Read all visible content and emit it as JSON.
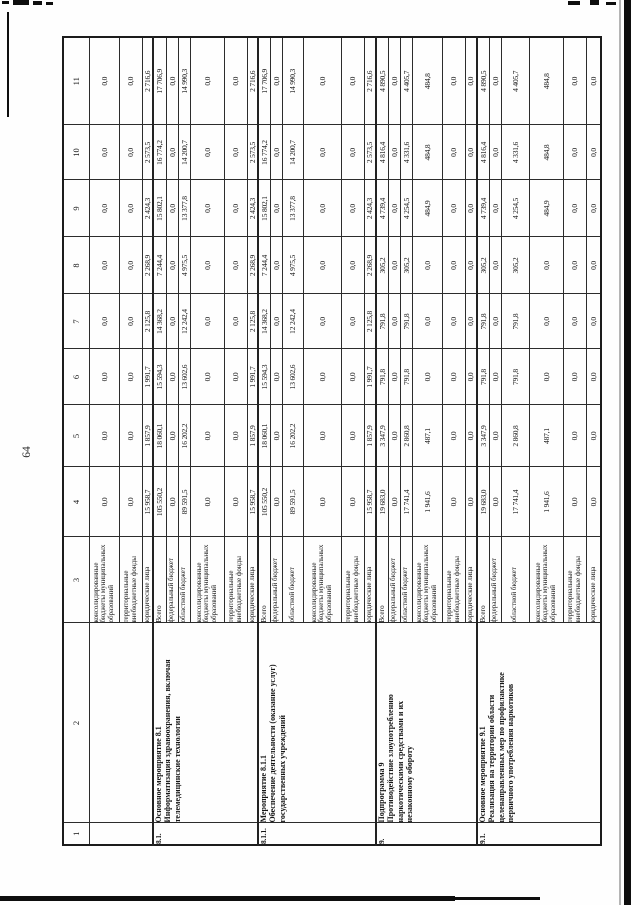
{
  "page": {
    "number": "64"
  },
  "table": {
    "column_headers": [
      "1",
      "2",
      "3",
      "4",
      "5",
      "6",
      "7",
      "8",
      "9",
      "10",
      "11"
    ],
    "groups": [
      {
        "num": "",
        "title": "",
        "rows": [
          {
            "source": "консолидированные\nбюджеты муниципальных\nобразований",
            "values": [
              "0,0",
              "0,0",
              "0,0",
              "0,0",
              "0,0",
              "0,0",
              "0,0",
              "0,0"
            ]
          },
          {
            "source": "территориальные\nвнебюджетные фонды",
            "values": [
              "0,0",
              "0,0",
              "0,0",
              "0,0",
              "0,0",
              "0,0",
              "0,0",
              "0,0"
            ]
          },
          {
            "source": "юридические лица",
            "values": [
              "15 958,7",
              "1 857,9",
              "1 991,7",
              "2 125,8",
              "2 268,9",
              "2 424,3",
              "2 573,5",
              "2 716,6"
            ]
          }
        ]
      },
      {
        "num": "8.1.",
        "title": "Основное мероприятие 8.1\nИнформатизация здравоохранения, включая\nтелемедицинские технологии",
        "rows": [
          {
            "source": "Всего",
            "values": [
              "105 550,2",
              "18 060,1",
              "15 594,3",
              "14 368,2",
              "7 244,4",
              "15 802,1",
              "16 774,2",
              "17 706,9"
            ]
          },
          {
            "source": "федеральный бюджет",
            "values": [
              "0,0",
              "0,0",
              "0,0",
              "0,0",
              "0,0",
              "0,0",
              "0,0",
              "0,0"
            ]
          },
          {
            "source": "областной бюджет",
            "values": [
              "89 591,5",
              "16 202,2",
              "13 602,6",
              "12 242,4",
              "4 975,5",
              "13 377,8",
              "14 200,7",
              "14 990,3"
            ]
          },
          {
            "source": "консолидированные\nбюджеты муниципальных\nобразований",
            "values": [
              "0,0",
              "0,0",
              "0,0",
              "0,0",
              "0,0",
              "0,0",
              "0,0",
              "0,0"
            ]
          },
          {
            "source": "территориальные\nвнебюджетные фонды",
            "values": [
              "0,0",
              "0,0",
              "0,0",
              "0,0",
              "0,0",
              "0,0",
              "0,0",
              "0,0"
            ]
          },
          {
            "source": "юридические лица",
            "values": [
              "15 958,7",
              "1 857,9",
              "1 991,7",
              "2 125,8",
              "2 268,9",
              "2 424,3",
              "2 573,5",
              "2 716,6"
            ]
          }
        ]
      },
      {
        "num": "8.1.1.",
        "title": "Мероприятие 8.1.1\nОбеспечение деятельности (оказание услуг)\nгосударственных учреждений",
        "rows": [
          {
            "source": "Всего",
            "values": [
              "105 550,2",
              "18 060,1",
              "15 594,3",
              "14 368,2",
              "7 244,4",
              "15 802,1",
              "16 774,2",
              "17 706,9"
            ]
          },
          {
            "source": "федеральный бюджет",
            "values": [
              "0,0",
              "0,0",
              "0,0",
              "0,0",
              "0,0",
              "0,0",
              "0,0",
              "0,0"
            ]
          },
          {
            "source": "областной бюджет",
            "values": [
              "89 591,5",
              "16 202,2",
              "13 602,6",
              "12 242,4",
              "4 975,5",
              "13 377,8",
              "14 200,7",
              "14 990,3"
            ]
          },
          {
            "source": "консолидированные\nбюджеты муниципальных\nобразований",
            "values": [
              "0,0",
              "0,0",
              "0,0",
              "0,0",
              "0,0",
              "0,0",
              "0,0",
              "0,0"
            ]
          },
          {
            "source": "территориальные\nвнебюджетные фонды",
            "values": [
              "0,0",
              "0,0",
              "0,0",
              "0,0",
              "0,0",
              "0,0",
              "0,0",
              "0,0"
            ]
          },
          {
            "source": "юридические лица",
            "values": [
              "15 958,7",
              "1 857,9",
              "1 991,7",
              "2 125,8",
              "2 268,9",
              "2 424,3",
              "2 573,5",
              "2 716,6"
            ]
          }
        ]
      },
      {
        "num": "9.",
        "title": "Подпрограмма 9\nПротиводействие злоупотреблению\nнаркотическими средствами и их\nнезаконному обороту",
        "rows": [
          {
            "source": "Всего",
            "values": [
              "19 683,0",
              "3 347,9",
              "791,8",
              "791,8",
              "305,2",
              "4 739,4",
              "4 816,4",
              "4 890,5"
            ]
          },
          {
            "source": "федеральный бюджет",
            "values": [
              "0,0",
              "0,0",
              "0,0",
              "0,0",
              "0,0",
              "0,0",
              "0,0",
              "0,0"
            ]
          },
          {
            "source": "областной бюджет",
            "values": [
              "17 741,4",
              "2 860,8",
              "791,8",
              "791,8",
              "305,2",
              "4 254,5",
              "4 331,6",
              "4 405,7"
            ]
          },
          {
            "source": "консолидированные\nбюджеты муниципальных\nобразований",
            "values": [
              "1 941,6",
              "487,1",
              "0,0",
              "0,0",
              "0,0",
              "484,9",
              "484,8",
              "484,8"
            ]
          },
          {
            "source": "территориальные\nвнебюджетные фонды",
            "values": [
              "0,0",
              "0,0",
              "0,0",
              "0,0",
              "0,0",
              "0,0",
              "0,0",
              "0,0"
            ]
          },
          {
            "source": "юридические лица",
            "values": [
              "0,0",
              "0,0",
              "0,0",
              "0,0",
              "0,0",
              "0,0",
              "0,0",
              "0,0"
            ]
          }
        ]
      },
      {
        "num": "9.1.",
        "title": "Основное мероприятие 9.1\nРеализация на территории области\nцеленаправленных мер по профилактике\nпервичного употребления наркотиков",
        "rows": [
          {
            "source": "Всего",
            "values": [
              "19 683,0",
              "3 347,9",
              "791,8",
              "791,8",
              "305,2",
              "4 739,4",
              "4 816,4",
              "4 890,5"
            ]
          },
          {
            "source": "федеральный бюджет",
            "values": [
              "0,0",
              "0,0",
              "0,0",
              "0,0",
              "0,0",
              "0,0",
              "0,0",
              "0,0"
            ]
          },
          {
            "source": "областной бюджет",
            "values": [
              "17 741,4",
              "2 860,8",
              "791,8",
              "791,8",
              "305,2",
              "4 254,5",
              "4 331,6",
              "4 405,7"
            ]
          },
          {
            "source": "консолидированные\nбюджеты муниципальных\nобразований",
            "values": [
              "1 941,6",
              "487,1",
              "0,0",
              "0,0",
              "0,0",
              "484,9",
              "484,8",
              "484,8"
            ]
          },
          {
            "source": "территориальные\nвнебюджетные фонды",
            "values": [
              "0,0",
              "0,0",
              "0,0",
              "0,0",
              "0,0",
              "0,0",
              "0,0",
              "0,0"
            ]
          },
          {
            "source": "юридические лица",
            "values": [
              "0,0",
              "0,0",
              "0,0",
              "0,0",
              "0,0",
              "0,0",
              "0,0",
              "0,0"
            ]
          }
        ]
      }
    ]
  }
}
